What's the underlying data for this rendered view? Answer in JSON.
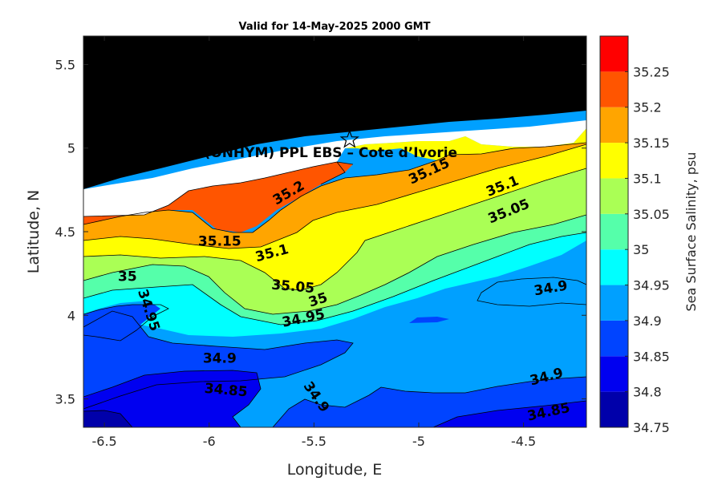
{
  "chart_data": {
    "type": "heatmap",
    "subtype": "filled-contour-map",
    "title": "Valid for 14-May-2025 2000 GMT",
    "xlabel": "Longitude, E",
    "ylabel": "Latitude, N",
    "xlim": [
      -6.6,
      -4.2
    ],
    "ylim": [
      3.33,
      5.67
    ],
    "xticks": [
      -6.5,
      -6,
      -5.5,
      -5,
      -4.5
    ],
    "xtick_labels": [
      "-6.5",
      "-6",
      "-5.5",
      "-5",
      "-4.5"
    ],
    "yticks": [
      3.5,
      4,
      4.5,
      5,
      5.5
    ],
    "ytick_labels": [
      "3.5",
      "4",
      "4.5",
      "5",
      "5.5"
    ],
    "colorbar": {
      "label": "Sea Surface Salinity, psu",
      "ticks": [
        "34.75",
        "34.8",
        "34.85",
        "34.9",
        "34.95",
        "35",
        "35.05",
        "35.1",
        "35.15",
        "35.2",
        "35.25"
      ],
      "range": [
        34.75,
        35.3
      ],
      "levels": [
        {
          "min": 34.75,
          "max": 34.8,
          "color": "#0000aa"
        },
        {
          "min": 34.8,
          "max": 34.85,
          "color": "#0000f0"
        },
        {
          "min": 34.85,
          "max": 34.9,
          "color": "#0044ff"
        },
        {
          "min": 34.9,
          "max": 34.95,
          "color": "#00a0ff"
        },
        {
          "min": 34.95,
          "max": 35.0,
          "color": "#00ffff"
        },
        {
          "min": 35.0,
          "max": 35.05,
          "color": "#55ffaa"
        },
        {
          "min": 35.05,
          "max": 35.1,
          "color": "#aaff55"
        },
        {
          "min": 35.1,
          "max": 35.15,
          "color": "#ffff00"
        },
        {
          "min": 35.15,
          "max": 35.2,
          "color": "#ffa500"
        },
        {
          "min": 35.2,
          "max": 35.25,
          "color": "#ff5500"
        },
        {
          "min": 35.25,
          "max": 35.3,
          "color": "#ff0000"
        }
      ]
    },
    "contour_labels": [
      {
        "text": "35.2",
        "lon": -5.62,
        "lat": 4.73,
        "angle": -30
      },
      {
        "text": "35.15",
        "lon": -4.95,
        "lat": 4.86,
        "angle": -25
      },
      {
        "text": "35.1",
        "lon": -4.6,
        "lat": 4.77,
        "angle": -22
      },
      {
        "text": "35.05",
        "lon": -4.57,
        "lat": 4.62,
        "angle": -22
      },
      {
        "text": "35.15",
        "lon": -5.95,
        "lat": 4.44,
        "angle": 0
      },
      {
        "text": "35.1",
        "lon": -5.7,
        "lat": 4.37,
        "angle": -15
      },
      {
        "text": "35.05",
        "lon": -5.6,
        "lat": 4.17,
        "angle": 5
      },
      {
        "text": "35",
        "lon": -6.39,
        "lat": 4.23,
        "angle": 0
      },
      {
        "text": "34.95",
        "lon": -6.29,
        "lat": 4.03,
        "angle": 72
      },
      {
        "text": "35",
        "lon": -5.48,
        "lat": 4.09,
        "angle": -18
      },
      {
        "text": "34.95",
        "lon": -5.55,
        "lat": 3.98,
        "angle": -12
      },
      {
        "text": "34.9",
        "lon": -4.37,
        "lat": 4.16,
        "angle": -10
      },
      {
        "text": "34.9",
        "lon": -5.95,
        "lat": 3.74,
        "angle": 0
      },
      {
        "text": "34.85",
        "lon": -5.92,
        "lat": 3.55,
        "angle": 5
      },
      {
        "text": "34.9",
        "lon": -5.49,
        "lat": 3.51,
        "angle": 55
      },
      {
        "text": "34.9",
        "lon": -4.39,
        "lat": 3.63,
        "angle": -15
      },
      {
        "text": "34.85",
        "lon": -4.38,
        "lat": 3.42,
        "angle": -12
      }
    ],
    "annotations": [
      {
        "text": "(ONHYM) PPL EBS  – Cote d’Ivorie",
        "lon": -5.42,
        "lat": 4.97,
        "marker": "star",
        "marker_lon": -5.33,
        "marker_lat": 5.05
      }
    ],
    "land_color": "#000000",
    "grid": false
  }
}
